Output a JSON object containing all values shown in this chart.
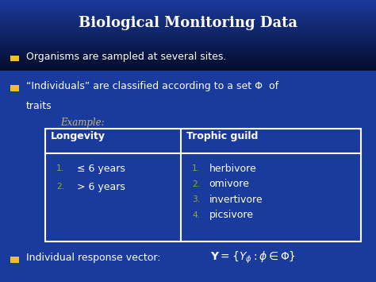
{
  "title": "Biological Monitoring Data",
  "bg_color": "#1a3b9e",
  "bg_dark": "#050d2e",
  "text_color": "#ffffff",
  "yellow_color": "#f0c020",
  "olive_color": "#8fb020",
  "example_color": "#c8b870",
  "bullet1": "Organisms are sampled at several sites.",
  "bullet2_line1": "“Individuals” are classified according to a set Φ  of",
  "bullet2_line2": "traits",
  "example_label": "Example:",
  "table_header1": "Longevity",
  "table_header2": "Trophic guild",
  "table_col1": [
    "≤ 6 years",
    "> 6 years"
  ],
  "table_col2": [
    "herbivore",
    "omivore",
    "invertivore",
    "picsivore"
  ],
  "bullet3_text": "Individual response vector:",
  "formula": "$\\mathbf{Y} = \\{Y_{\\phi} : \\phi \\in \\Phi\\}$"
}
